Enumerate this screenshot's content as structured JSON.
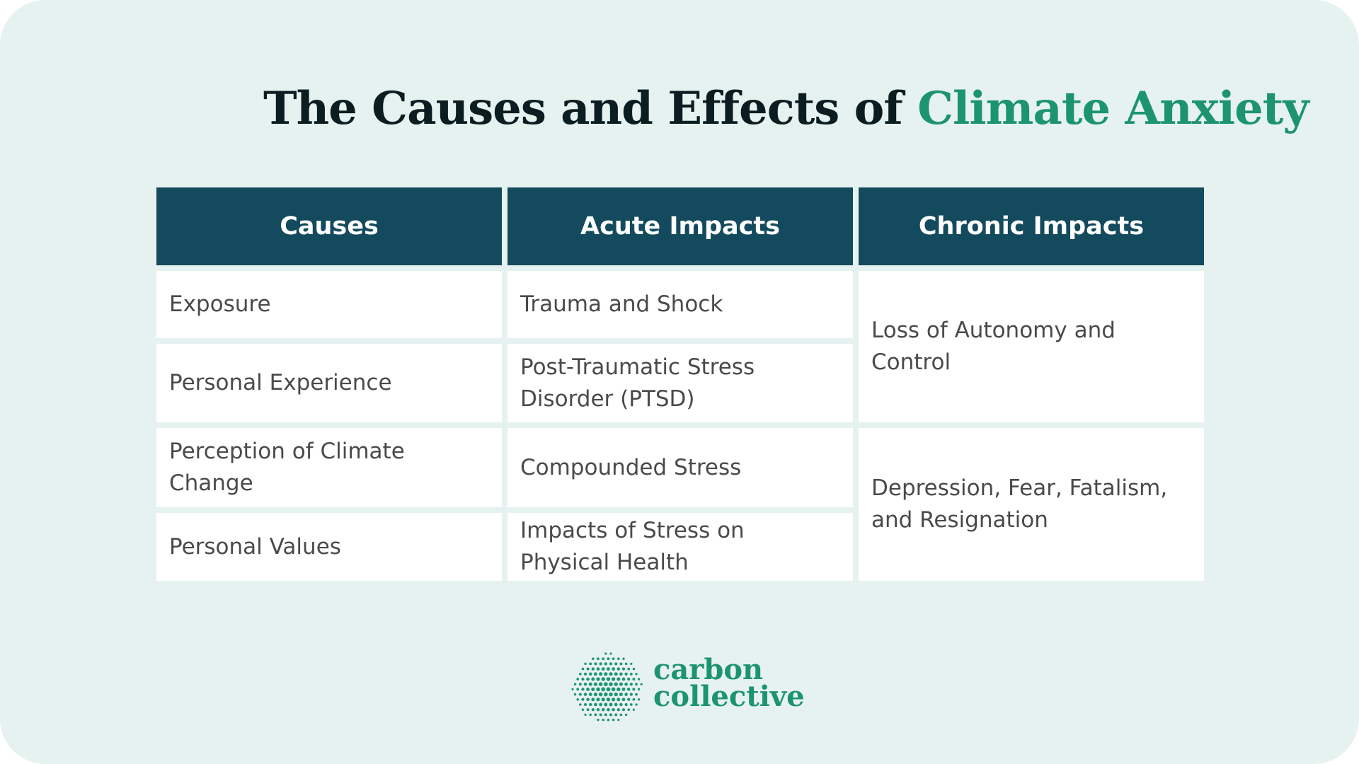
{
  "title": {
    "prefix": "The Causes and Effects of",
    "accent": "Climate Anxiety"
  },
  "table": {
    "headers": [
      "Causes",
      "Acute Impacts",
      "Chronic Impacts"
    ],
    "causes": [
      "Exposure",
      "Personal Experience",
      "Perception of Climate Change",
      "Personal Values"
    ],
    "acute_impacts": [
      "Trauma and Shock",
      "Post-Traumatic Stress Disorder (PTSD)",
      "Compounded Stress",
      "Impacts of Stress on Physical Health"
    ],
    "chronic_impacts": [
      "Loss of Autonomy and Control",
      "Depression, Fear, Fatalism, and Resignation"
    ]
  },
  "logo": {
    "line1": "carbon",
    "line2": "collective",
    "icon": "dotted-circle-icon"
  },
  "colors": {
    "background": "#e6f2ef",
    "header": "#134a5e",
    "accent": "#1d9470",
    "title": "#0c1d22"
  }
}
